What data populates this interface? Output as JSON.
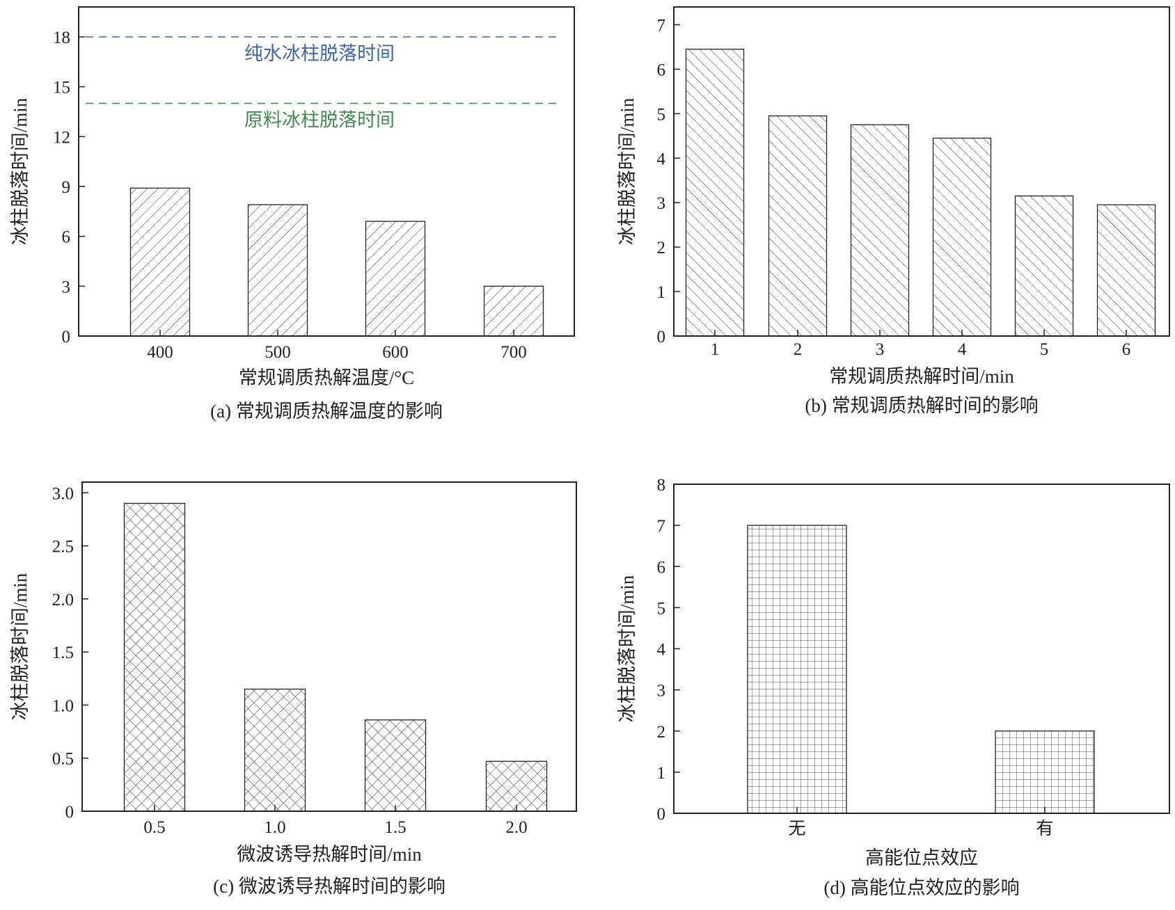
{
  "chart_data": [
    {
      "id": "a",
      "type": "bar",
      "caption": "(a) 常规调质热解温度的影响",
      "xlabel": "常规调质热解温度/°C",
      "ylabel": "冰柱脱落时间/min",
      "categories": [
        "400",
        "500",
        "600",
        "700"
      ],
      "values": [
        8.9,
        7.9,
        6.9,
        3.0
      ],
      "ylim": [
        0,
        19.8
      ],
      "yticks": [
        0,
        3,
        6,
        9,
        12,
        15,
        18
      ],
      "ytick_labels": [
        "0",
        "3",
        "6",
        "9",
        "12",
        "15",
        "18"
      ],
      "hatch": "forward-diagonal",
      "reference_lines": [
        {
          "value": 18,
          "label": "纯水冰柱脱落时间",
          "color": "#3a66a8"
        },
        {
          "value": 14,
          "label": "原料冰柱脱落时间",
          "color": "#3f8a4f"
        }
      ],
      "grid": false
    },
    {
      "id": "b",
      "type": "bar",
      "caption": "(b) 常规调质热解时间的影响",
      "xlabel": "常规调质热解时间/min",
      "ylabel": "冰柱脱落时间/min",
      "categories": [
        "1",
        "2",
        "3",
        "4",
        "5",
        "6"
      ],
      "values": [
        6.45,
        4.95,
        4.75,
        4.45,
        3.15,
        2.95
      ],
      "ylim": [
        0,
        7.4
      ],
      "yticks": [
        0,
        1,
        2,
        3,
        4,
        5,
        6,
        7
      ],
      "ytick_labels": [
        "0",
        "1",
        "2",
        "3",
        "4",
        "5",
        "6",
        "7"
      ],
      "hatch": "back-diagonal",
      "grid": false
    },
    {
      "id": "c",
      "type": "bar",
      "caption": "(c) 微波诱导热解时间的影响",
      "xlabel": "微波诱导热解时间/min",
      "ylabel": "冰柱脱落时间/min",
      "categories": [
        "0.5",
        "1.0",
        "1.5",
        "2.0"
      ],
      "values": [
        2.9,
        1.15,
        0.86,
        0.47
      ],
      "ylim": [
        0,
        3.1
      ],
      "yticks": [
        0,
        0.5,
        1.0,
        1.5,
        2.0,
        2.5,
        3.0
      ],
      "ytick_labels": [
        "0",
        "0.5",
        "1.0",
        "1.5",
        "2.0",
        "2.5",
        "3.0"
      ],
      "hatch": "cross-diagonal",
      "grid": false
    },
    {
      "id": "d",
      "type": "bar",
      "caption": "(d) 高能位点效应的影响",
      "xlabel": "高能位点效应",
      "ylabel": "冰柱脱落时间/min",
      "categories": [
        "无",
        "有"
      ],
      "values": [
        7.0,
        2.0
      ],
      "ylim": [
        0,
        8
      ],
      "yticks": [
        0,
        1,
        2,
        3,
        4,
        5,
        6,
        7,
        8
      ],
      "ytick_labels": [
        "0",
        "1",
        "2",
        "3",
        "4",
        "5",
        "6",
        "7",
        "8"
      ],
      "hatch": "grid",
      "grid": false
    }
  ]
}
